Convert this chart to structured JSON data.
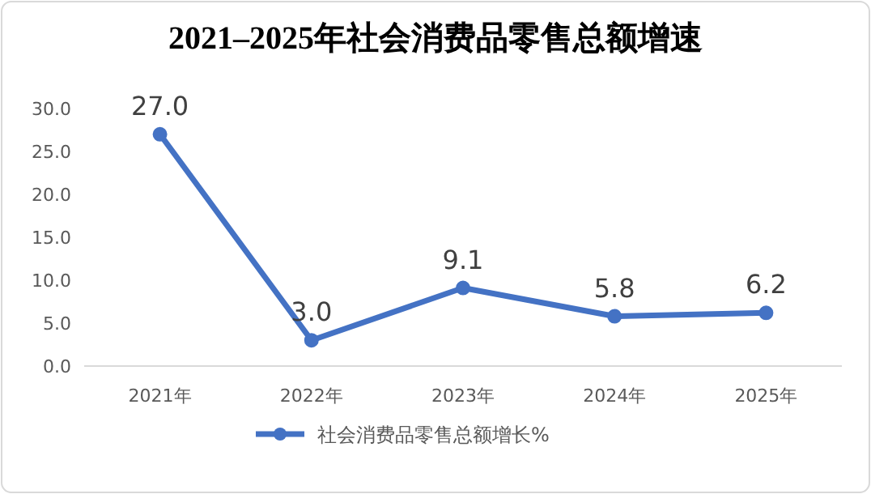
{
  "chart_data": {
    "type": "line",
    "title": "2021–2025年社会消费品零售总额增速",
    "categories": [
      "2021年",
      "2022年",
      "2023年",
      "2024年",
      "2025年"
    ],
    "series": [
      {
        "name": "社会消费品零售总额增长%",
        "color": "#4472c4",
        "values": [
          27.0,
          3.0,
          9.1,
          5.8,
          6.2
        ],
        "value_labels": [
          "27.0",
          "3.0",
          "9.1",
          "5.8",
          "6.2"
        ]
      }
    ],
    "ylim": [
      0,
      30
    ],
    "yticks": [
      {
        "value": 0,
        "label": "0.0"
      },
      {
        "value": 5,
        "label": "5.0"
      },
      {
        "value": 10,
        "label": "10.0"
      },
      {
        "value": 15,
        "label": "15.0"
      },
      {
        "value": 20,
        "label": "20.0"
      },
      {
        "value": 25,
        "label": "25.0"
      },
      {
        "value": 30,
        "label": "30.0"
      }
    ],
    "marker": "circle",
    "legend": "bottom",
    "grid": false
  }
}
